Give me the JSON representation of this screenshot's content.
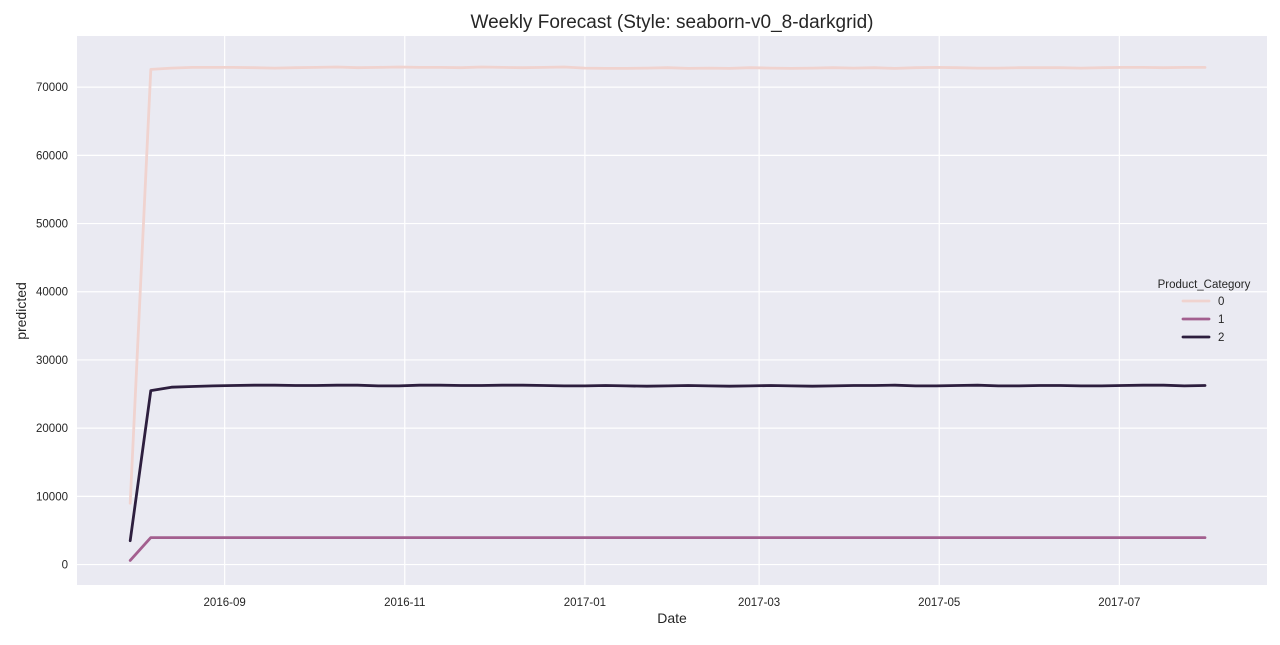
{
  "chart_data": {
    "type": "line",
    "title": "Weekly Forecast (Style: seaborn-v0_8-darkgrid)",
    "xlabel": "Date",
    "ylabel": "predicted",
    "x_range": [
      "2016-07-13",
      "2017-08-20"
    ],
    "ylim": [
      -3000,
      77500
    ],
    "y_ticks": [
      0,
      10000,
      20000,
      30000,
      40000,
      50000,
      60000,
      70000
    ],
    "x_ticks": [
      {
        "date": "2016-09-01",
        "label": "2016-09"
      },
      {
        "date": "2016-11-01",
        "label": "2016-11"
      },
      {
        "date": "2017-01-01",
        "label": "2017-01"
      },
      {
        "date": "2017-03-01",
        "label": "2017-03"
      },
      {
        "date": "2017-05-01",
        "label": "2017-05"
      },
      {
        "date": "2017-07-01",
        "label": "2017-07"
      }
    ],
    "grid": true,
    "legend": {
      "title": "Product_Category",
      "placement": "right"
    },
    "x": [
      "2016-07-31",
      "2016-08-07",
      "2016-08-14",
      "2016-08-21",
      "2016-08-28",
      "2016-09-04",
      "2016-09-11",
      "2016-09-18",
      "2016-09-25",
      "2016-10-02",
      "2016-10-09",
      "2016-10-16",
      "2016-10-23",
      "2016-10-30",
      "2016-11-06",
      "2016-11-13",
      "2016-11-20",
      "2016-11-27",
      "2016-12-04",
      "2016-12-11",
      "2016-12-18",
      "2016-12-25",
      "2017-01-01",
      "2017-01-08",
      "2017-01-15",
      "2017-01-22",
      "2017-01-29",
      "2017-02-05",
      "2017-02-12",
      "2017-02-19",
      "2017-02-26",
      "2017-03-05",
      "2017-03-12",
      "2017-03-19",
      "2017-03-26",
      "2017-04-02",
      "2017-04-09",
      "2017-04-16",
      "2017-04-23",
      "2017-04-30",
      "2017-05-07",
      "2017-05-14",
      "2017-05-21",
      "2017-05-28",
      "2017-06-04",
      "2017-06-11",
      "2017-06-18",
      "2017-06-25",
      "2017-07-02",
      "2017-07-09",
      "2017-07-16",
      "2017-07-23",
      "2017-07-30"
    ],
    "series": [
      {
        "name": "0",
        "color": "#f0d3cf",
        "values": [
          9000,
          72600,
          72800,
          72900,
          72900,
          72900,
          72850,
          72800,
          72850,
          72900,
          72950,
          72850,
          72900,
          72950,
          72900,
          72900,
          72850,
          72950,
          72900,
          72850,
          72900,
          72950,
          72800,
          72750,
          72750,
          72800,
          72850,
          72750,
          72800,
          72750,
          72850,
          72800,
          72750,
          72800,
          72850,
          72800,
          72850,
          72750,
          72850,
          72900,
          72850,
          72800,
          72800,
          72850,
          72850,
          72850,
          72800,
          72850,
          72900,
          72900,
          72850,
          72900,
          72900
        ]
      },
      {
        "name": "1",
        "color": "#a35f8f",
        "values": [
          600,
          3950,
          3950,
          3950,
          3950,
          3950,
          3950,
          3950,
          3950,
          3950,
          3950,
          3950,
          3950,
          3950,
          3950,
          3950,
          3950,
          3950,
          3950,
          3950,
          3950,
          3950,
          3950,
          3950,
          3950,
          3950,
          3950,
          3950,
          3950,
          3950,
          3950,
          3950,
          3950,
          3950,
          3950,
          3950,
          3950,
          3950,
          3950,
          3950,
          3950,
          3950,
          3950,
          3950,
          3950,
          3950,
          3950,
          3950,
          3950,
          3950,
          3950,
          3950,
          3950
        ]
      },
      {
        "name": "2",
        "color": "#2d1e3e",
        "values": [
          3500,
          25500,
          26000,
          26100,
          26200,
          26250,
          26300,
          26300,
          26250,
          26250,
          26300,
          26300,
          26200,
          26200,
          26300,
          26300,
          26250,
          26250,
          26300,
          26300,
          26250,
          26200,
          26200,
          26250,
          26200,
          26150,
          26200,
          26250,
          26200,
          26150,
          26200,
          26250,
          26200,
          26150,
          26200,
          26250,
          26250,
          26300,
          26200,
          26200,
          26250,
          26300,
          26200,
          26200,
          26250,
          26250,
          26200,
          26200,
          26250,
          26300,
          26300,
          26200,
          26250
        ]
      }
    ]
  }
}
